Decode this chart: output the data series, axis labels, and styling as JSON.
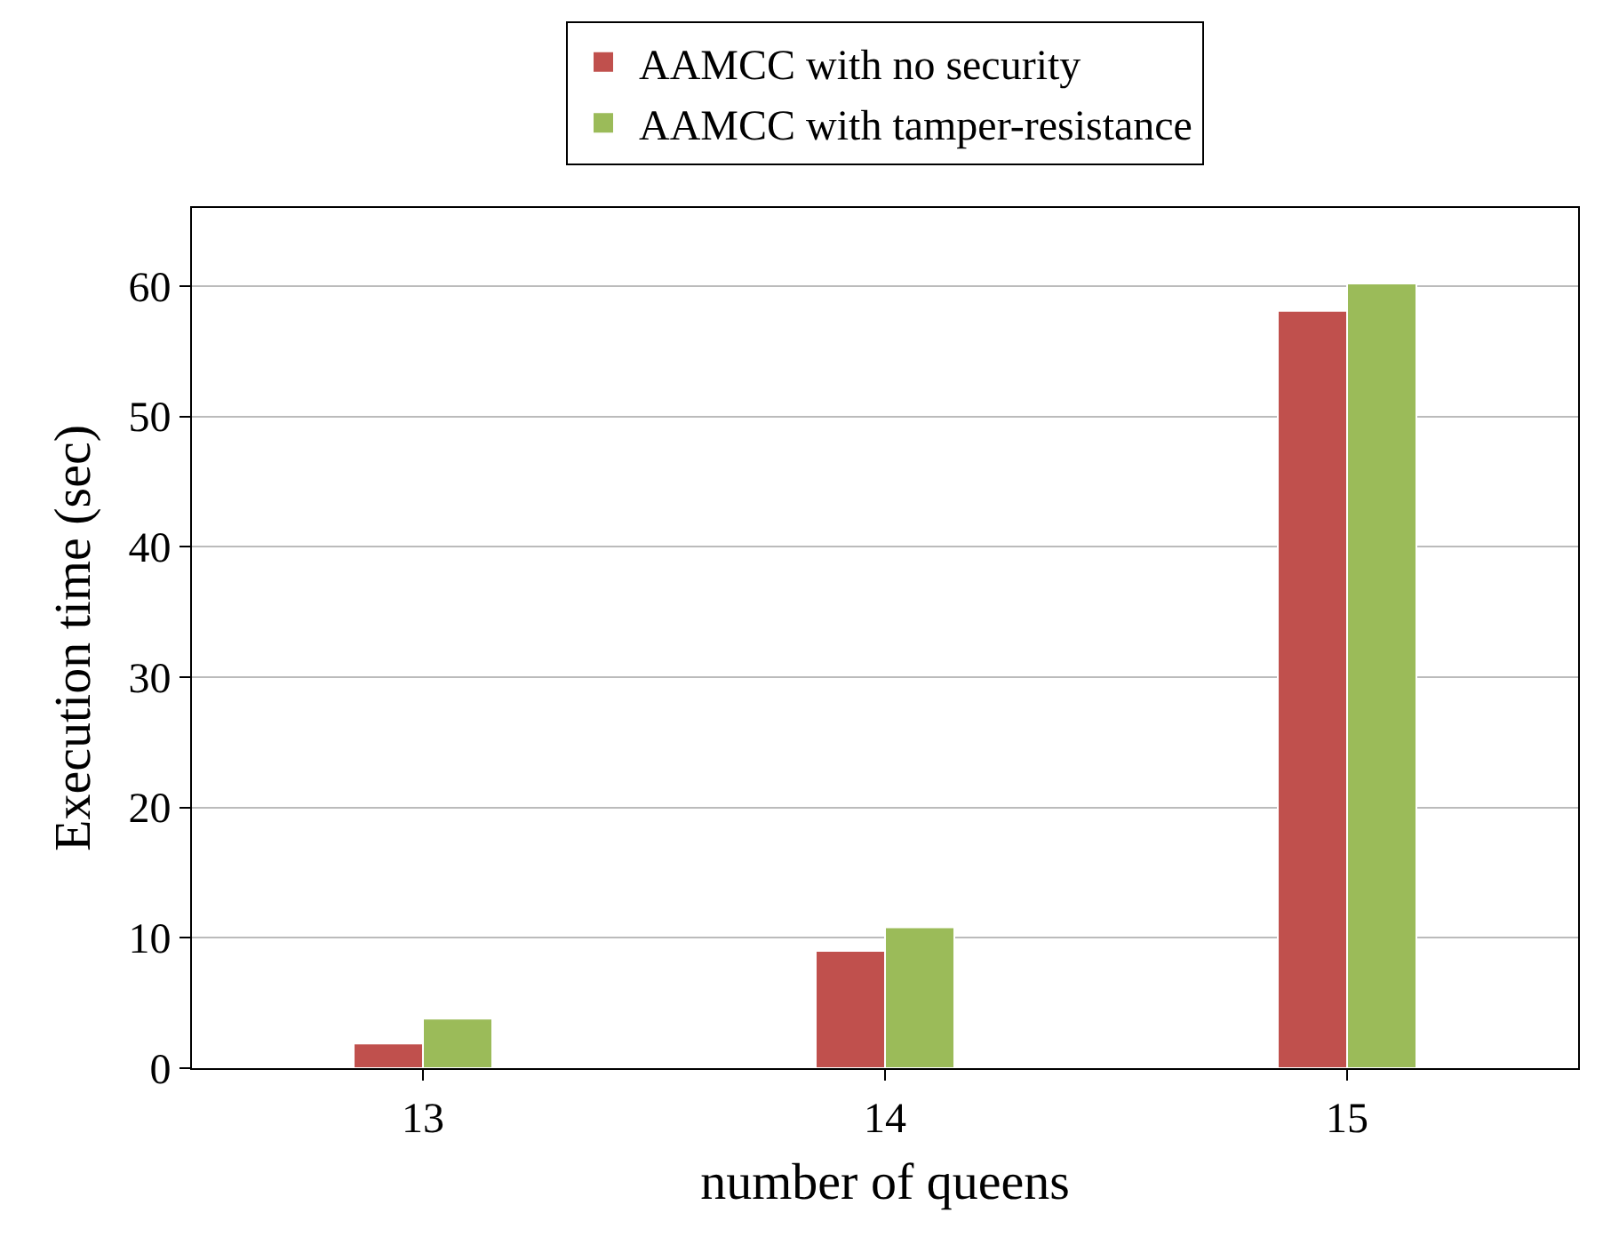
{
  "chart_data": {
    "type": "bar",
    "xlabel": "number of queens",
    "ylabel": "Execution time (sec)",
    "categories": [
      "13",
      "14",
      "15"
    ],
    "series": [
      {
        "name": "AAMCC with no security",
        "color": "#c0504d",
        "values": [
          1.9,
          9.0,
          58.1
        ]
      },
      {
        "name": "AAMCC with tamper-resistance",
        "color": "#9bbb59",
        "values": [
          3.8,
          10.8,
          60.2
        ]
      }
    ],
    "ylim": [
      0,
      66
    ],
    "yticks": [
      0,
      10,
      20,
      30,
      40,
      50,
      60
    ],
    "grid": "y",
    "legend": "top"
  }
}
